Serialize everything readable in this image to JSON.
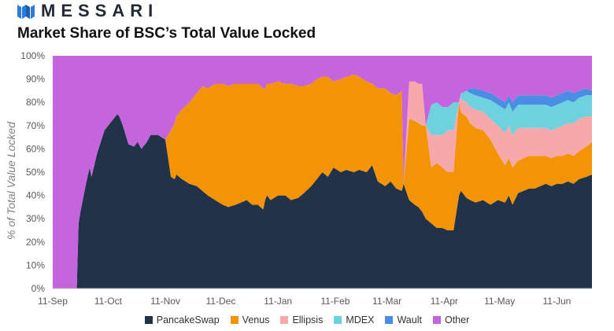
{
  "header": {
    "brand_name": "MESSARI",
    "logo_icon": "messari-logo-icon",
    "title": "Market Share of BSC’s Total Value Locked"
  },
  "chart_data": {
    "type": "area",
    "stacked": true,
    "normalized": true,
    "title": "Market Share of BSC’s Total Value Locked",
    "xlabel": "",
    "ylabel": "% of Total Value Locked",
    "x_start": "2020-09-11",
    "x_end": "2021-06-30",
    "xticks": [
      {
        "date": "2020-09-11",
        "label": "11-Sep"
      },
      {
        "date": "2020-10-11",
        "label": "11-Oct"
      },
      {
        "date": "2020-11-11",
        "label": "11-Nov"
      },
      {
        "date": "2020-12-11",
        "label": "11-Dec"
      },
      {
        "date": "2021-01-11",
        "label": "11-Jan"
      },
      {
        "date": "2021-02-11",
        "label": "11-Feb"
      },
      {
        "date": "2021-03-11",
        "label": "11-Mar"
      },
      {
        "date": "2021-04-11",
        "label": "11-Apr"
      },
      {
        "date": "2021-05-11",
        "label": "11-May"
      },
      {
        "date": "2021-06-11",
        "label": "11-Jun"
      }
    ],
    "ylim": [
      0,
      100
    ],
    "yticks": [
      0,
      10,
      20,
      30,
      40,
      50,
      60,
      70,
      80,
      90,
      100
    ],
    "ytick_labels": [
      "0%",
      "10%",
      "20%",
      "30%",
      "40%",
      "50%",
      "60%",
      "70%",
      "80%",
      "90%",
      "100%"
    ],
    "grid": false,
    "legend_position": "bottom",
    "x": [
      "2020-09-11",
      "2020-09-24",
      "2020-09-25",
      "2020-09-26",
      "2020-09-29",
      "2020-10-01",
      "2020-10-02",
      "2020-10-05",
      "2020-10-09",
      "2020-10-14",
      "2020-10-16",
      "2020-10-17",
      "2020-10-19",
      "2020-10-22",
      "2020-10-25",
      "2020-10-27",
      "2020-10-29",
      "2020-11-01",
      "2020-11-03",
      "2020-11-07",
      "2020-11-11",
      "2020-11-14",
      "2020-11-16",
      "2020-11-17",
      "2020-11-20",
      "2020-11-24",
      "2020-11-28",
      "2020-12-01",
      "2020-12-04",
      "2020-12-08",
      "2020-12-12",
      "2020-12-15",
      "2020-12-19",
      "2020-12-22",
      "2020-12-25",
      "2020-12-28",
      "2020-12-31",
      "2021-01-03",
      "2021-01-04",
      "2021-01-05",
      "2021-01-07",
      "2021-01-11",
      "2021-01-15",
      "2021-01-18",
      "2021-01-22",
      "2021-01-25",
      "2021-01-29",
      "2021-02-01",
      "2021-02-04",
      "2021-02-07",
      "2021-02-10",
      "2021-02-14",
      "2021-02-17",
      "2021-02-21",
      "2021-02-24",
      "2021-02-28",
      "2021-03-03",
      "2021-03-06",
      "2021-03-10",
      "2021-03-13",
      "2021-03-16",
      "2021-03-19",
      "2021-03-20",
      "2021-03-23",
      "2021-03-26",
      "2021-03-28",
      "2021-03-30",
      "2021-04-01",
      "2021-04-04",
      "2021-04-07",
      "2021-04-10",
      "2021-04-13",
      "2021-04-16",
      "2021-04-19",
      "2021-04-20",
      "2021-04-21",
      "2021-04-23",
      "2021-04-25",
      "2021-04-28",
      "2021-05-02",
      "2021-05-06",
      "2021-05-10",
      "2021-05-14",
      "2021-05-16",
      "2021-05-18",
      "2021-05-21",
      "2021-05-24",
      "2021-05-27",
      "2021-05-30",
      "2021-06-02",
      "2021-06-05",
      "2021-06-08",
      "2021-06-11",
      "2021-06-14",
      "2021-06-17",
      "2021-06-20",
      "2021-06-23",
      "2021-06-27",
      "2021-06-30"
    ],
    "series": [
      {
        "name": "PancakeSwap",
        "color": "#223349",
        "values": [
          0,
          0,
          28,
          33,
          45,
          52,
          48,
          58,
          68,
          73,
          75,
          74,
          70,
          62,
          61,
          63,
          60,
          63,
          66,
          66,
          64,
          48,
          47,
          49,
          47,
          45,
          44,
          42,
          40,
          38,
          36,
          35,
          36,
          37,
          38,
          36,
          36,
          34,
          38,
          40,
          38,
          40,
          40,
          38,
          39,
          41,
          44,
          47,
          50,
          48,
          52,
          50,
          51,
          50,
          51,
          50,
          53,
          46,
          44,
          46,
          43,
          42,
          45,
          38,
          36,
          35,
          33,
          30,
          28,
          26,
          26,
          25,
          25,
          40,
          42,
          41,
          39,
          38,
          37,
          38,
          36,
          38,
          37,
          40,
          36,
          41,
          42,
          43,
          43,
          44,
          45,
          44,
          45,
          45,
          46,
          45,
          47,
          48,
          49
        ]
      },
      {
        "name": "Venus",
        "color": "#f29406",
        "values": [
          0,
          0,
          0,
          0,
          0,
          0,
          0,
          0,
          0,
          0,
          0,
          0,
          0,
          0,
          0,
          0,
          0,
          0,
          0,
          0,
          0,
          20,
          24,
          25,
          30,
          35,
          40,
          45,
          46,
          50,
          52,
          52,
          52,
          51,
          50,
          52,
          52,
          52,
          48,
          48,
          50,
          49,
          48,
          50,
          48,
          46,
          44,
          43,
          41,
          43,
          37,
          40,
          40,
          42,
          40,
          39,
          35,
          40,
          42,
          38,
          40,
          43,
          0,
          35,
          36,
          36,
          37,
          40,
          24,
          28,
          26,
          25,
          25,
          40,
          34,
          34,
          35,
          33,
          32,
          30,
          28,
          20,
          16,
          16,
          16,
          14,
          14,
          14,
          14,
          13,
          12,
          12,
          12,
          12,
          12,
          12,
          12,
          13,
          14
        ]
      },
      {
        "name": "Ellipsis",
        "color": "#f6a8aa",
        "values": [
          0,
          0,
          0,
          0,
          0,
          0,
          0,
          0,
          0,
          0,
          0,
          0,
          0,
          0,
          0,
          0,
          0,
          0,
          0,
          0,
          0,
          0,
          0,
          0,
          0,
          0,
          0,
          0,
          0,
          0,
          0,
          0,
          0,
          0,
          0,
          0,
          0,
          0,
          0,
          0,
          0,
          0,
          0,
          0,
          0,
          0,
          0,
          0,
          0,
          0,
          0,
          0,
          0,
          0,
          0,
          0,
          0,
          0,
          0,
          0,
          0,
          0,
          0,
          16,
          17,
          17,
          18,
          0,
          14,
          12,
          14,
          18,
          18,
          0,
          6,
          6,
          6,
          7,
          8,
          8,
          9,
          12,
          14,
          14,
          14,
          14,
          13,
          12,
          12,
          12,
          12,
          12,
          12,
          13,
          13,
          14,
          14,
          13,
          11
        ]
      },
      {
        "name": "MDEX",
        "color": "#6ed2de",
        "values": [
          0,
          0,
          0,
          0,
          0,
          0,
          0,
          0,
          0,
          0,
          0,
          0,
          0,
          0,
          0,
          0,
          0,
          0,
          0,
          0,
          0,
          0,
          0,
          0,
          0,
          0,
          0,
          0,
          0,
          0,
          0,
          0,
          0,
          0,
          0,
          0,
          0,
          0,
          0,
          0,
          0,
          0,
          0,
          0,
          0,
          0,
          0,
          0,
          0,
          0,
          0,
          0,
          0,
          0,
          0,
          0,
          0,
          0,
          0,
          0,
          0,
          0,
          0,
          0,
          0,
          0,
          0,
          0,
          13,
          14,
          12,
          10,
          12,
          0,
          2,
          3,
          5,
          6,
          6,
          6,
          8,
          9,
          10,
          10,
          10,
          10,
          10,
          10,
          10,
          10,
          10,
          10,
          10,
          10,
          10,
          9,
          9,
          9,
          9
        ]
      },
      {
        "name": "Wault",
        "color": "#4a8ee3",
        "values": [
          0,
          0,
          0,
          0,
          0,
          0,
          0,
          0,
          0,
          0,
          0,
          0,
          0,
          0,
          0,
          0,
          0,
          0,
          0,
          0,
          0,
          0,
          0,
          0,
          0,
          0,
          0,
          0,
          0,
          0,
          0,
          0,
          0,
          0,
          0,
          0,
          0,
          0,
          0,
          0,
          0,
          0,
          0,
          0,
          0,
          0,
          0,
          0,
          0,
          0,
          0,
          0,
          0,
          0,
          0,
          0,
          0,
          0,
          0,
          0,
          0,
          0,
          0,
          0,
          0,
          0,
          0,
          0,
          0,
          0,
          0,
          0,
          0,
          0,
          0,
          0,
          0,
          2,
          3,
          3,
          3,
          3,
          3,
          3,
          4,
          4,
          4,
          4,
          4,
          4,
          4,
          4,
          4,
          4,
          4,
          4,
          3,
          3,
          2
        ]
      },
      {
        "name": "Other",
        "color": "#c465de",
        "values": [
          100,
          100,
          72,
          67,
          55,
          48,
          52,
          42,
          32,
          27,
          25,
          26,
          30,
          38,
          39,
          37,
          40,
          37,
          34,
          34,
          36,
          32,
          29,
          26,
          23,
          20,
          16,
          13,
          14,
          12,
          12,
          13,
          12,
          12,
          12,
          12,
          12,
          14,
          14,
          12,
          12,
          11,
          12,
          12,
          13,
          13,
          12,
          10,
          9,
          9,
          11,
          10,
          9,
          8,
          9,
          11,
          12,
          14,
          14,
          16,
          17,
          15,
          55,
          11,
          11,
          12,
          12,
          30,
          21,
          20,
          22,
          22,
          20,
          20,
          16,
          16,
          15,
          14,
          14,
          15,
          16,
          18,
          20,
          17,
          20,
          17,
          17,
          17,
          17,
          17,
          17,
          18,
          17,
          16,
          15,
          16,
          15,
          14,
          15
        ]
      }
    ]
  }
}
